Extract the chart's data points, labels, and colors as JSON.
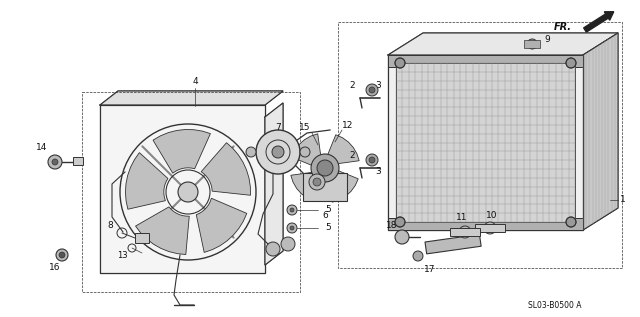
{
  "bg_color": "#ffffff",
  "line_color": "#333333",
  "diagram_code": "SL03-B0500 A",
  "fr_label": "FR.",
  "figsize": [
    6.4,
    3.17
  ],
  "dpi": 100
}
